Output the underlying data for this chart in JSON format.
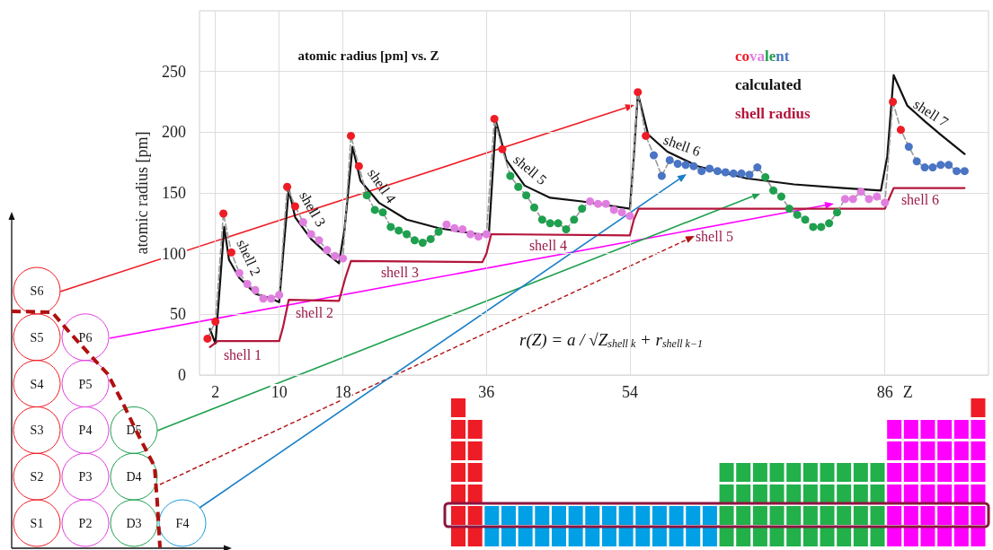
{
  "chart_data": {
    "type": "line",
    "title": "atomic radius [pm] vs. Z",
    "xlabel": "Z",
    "ylabel": "atomic radius [pm]",
    "xlim": [
      0,
      99
    ],
    "xticks": [
      2,
      10,
      18,
      36,
      54,
      86
    ],
    "ylim": [
      0,
      300
    ],
    "yticks": [
      0,
      50,
      100,
      150,
      200,
      250
    ],
    "grid": true,
    "legend": "top right",
    "series": [
      {
        "name": "covalent",
        "type": "line",
        "marker": "circle",
        "line_style": "dashed",
        "color": "#999999",
        "x": [
          1,
          2,
          3,
          4,
          5,
          6,
          7,
          8,
          9,
          10,
          11,
          12,
          13,
          14,
          15,
          16,
          17,
          18,
          19,
          20,
          21,
          22,
          23,
          24,
          25,
          26,
          27,
          28,
          29,
          30,
          31,
          32,
          33,
          34,
          35,
          36,
          37,
          38,
          39,
          40,
          41,
          42,
          43,
          44,
          45,
          46,
          47,
          48,
          49,
          50,
          51,
          52,
          53,
          54,
          55,
          56,
          57,
          58,
          59,
          60,
          61,
          62,
          63,
          64,
          65,
          66,
          67,
          68,
          69,
          70,
          71,
          72,
          73,
          74,
          75,
          76,
          77,
          78,
          79,
          80,
          81,
          82,
          83,
          84,
          85,
          86,
          87,
          88,
          89,
          90,
          91,
          92,
          93,
          94,
          95,
          96
        ],
        "values": [
          30,
          44,
          133,
          101,
          84,
          75,
          70,
          63,
          63,
          66,
          155,
          139,
          126,
          116,
          111,
          103,
          98,
          96,
          197,
          172,
          148,
          136,
          134,
          122,
          119,
          116,
          111,
          109,
          112,
          118,
          124,
          121,
          120,
          116,
          114,
          116,
          211,
          186,
          164,
          155,
          148,
          138,
          128,
          125,
          125,
          120,
          128,
          137,
          143,
          141,
          141,
          136,
          134,
          131,
          233,
          197,
          181,
          164,
          177,
          174,
          173,
          172,
          168,
          170,
          168,
          167,
          166,
          166,
          165,
          171,
          163,
          152,
          147,
          137,
          132,
          128,
          122,
          122,
          125,
          134,
          145,
          145,
          151,
          145,
          147,
          142,
          225,
          202,
          188,
          176,
          171,
          171,
          173,
          173,
          168,
          168
        ],
        "colors": [
          "#ee1c25",
          "#ee1c25",
          "#ee1c25",
          "#ee1c25",
          "#e07ee0",
          "#e07ee0",
          "#e07ee0",
          "#e07ee0",
          "#e07ee0",
          "#e07ee0",
          "#ee1c25",
          "#ee1c25",
          "#e07ee0",
          "#e07ee0",
          "#e07ee0",
          "#e07ee0",
          "#e07ee0",
          "#e07ee0",
          "#ee1c25",
          "#ee1c25",
          "#1ea04e",
          "#1ea04e",
          "#1ea04e",
          "#1ea04e",
          "#1ea04e",
          "#1ea04e",
          "#1ea04e",
          "#1ea04e",
          "#1ea04e",
          "#1ea04e",
          "#e07ee0",
          "#e07ee0",
          "#e07ee0",
          "#e07ee0",
          "#e07ee0",
          "#e07ee0",
          "#ee1c25",
          "#ee1c25",
          "#1ea04e",
          "#1ea04e",
          "#1ea04e",
          "#1ea04e",
          "#1ea04e",
          "#1ea04e",
          "#1ea04e",
          "#1ea04e",
          "#1ea04e",
          "#1ea04e",
          "#e07ee0",
          "#e07ee0",
          "#e07ee0",
          "#e07ee0",
          "#e07ee0",
          "#e07ee0",
          "#ee1c25",
          "#ee1c25",
          "#4a74c4",
          "#4a74c4",
          "#4a74c4",
          "#4a74c4",
          "#4a74c4",
          "#4a74c4",
          "#4a74c4",
          "#4a74c4",
          "#4a74c4",
          "#4a74c4",
          "#4a74c4",
          "#4a74c4",
          "#4a74c4",
          "#4a74c4",
          "#1ea04e",
          "#1ea04e",
          "#1ea04e",
          "#1ea04e",
          "#1ea04e",
          "#1ea04e",
          "#1ea04e",
          "#1ea04e",
          "#1ea04e",
          "#1ea04e",
          "#e07ee0",
          "#e07ee0",
          "#e07ee0",
          "#e07ee0",
          "#e07ee0",
          "#e07ee0",
          "#ee1c25",
          "#ee1c25",
          "#4a74c4",
          "#4a74c4",
          "#4a74c4",
          "#4a74c4",
          "#4a74c4",
          "#4a74c4",
          "#4a74c4",
          "#4a74c4"
        ]
      },
      {
        "name": "calculated",
        "type": "line",
        "marker": "none",
        "line_style": "solid",
        "color": "#111111",
        "x": [
          1.3,
          2,
          2.4,
          3.1,
          3.7,
          5,
          7,
          9,
          10,
          10.5,
          11.2,
          12,
          14,
          16,
          17.5,
          18.2,
          19.2,
          20.2,
          22.5,
          26,
          30,
          35,
          36.3,
          37.2,
          38.5,
          40.8,
          44,
          48,
          54,
          54.5,
          55,
          56.3,
          58.7,
          62.5,
          68.6,
          74.6,
          80.8,
          85.5,
          86.3,
          87.1,
          88.8,
          91,
          93,
          96
        ],
        "values": [
          38,
          26,
          60,
          122,
          95,
          80,
          67,
          63,
          60,
          100,
          153,
          130,
          112,
          100,
          92,
          120,
          188,
          160,
          142,
          128,
          121,
          116,
          115,
          209,
          177,
          156,
          146,
          143,
          137,
          180,
          232,
          198,
          184,
          172,
          162,
          157,
          154,
          152,
          180,
          247,
          222,
          209,
          198,
          182
        ]
      },
      {
        "name": "shell radius",
        "type": "line",
        "marker": "none",
        "line_style": "solid",
        "color": "#b3163c",
        "x": [
          1.3,
          2.3,
          10,
          10.5,
          11.2,
          17.5,
          18.3,
          19,
          35.5,
          36,
          36.6,
          54,
          54.5,
          55.1,
          86,
          86.5,
          87.1,
          96
        ],
        "values": [
          23,
          28,
          28,
          40,
          62,
          61,
          80,
          94,
          93,
          100,
          116,
          115,
          128,
          137,
          137,
          145,
          154,
          154
        ]
      }
    ],
    "annotations": [
      "shell 1",
      "shell 2",
      "shell 3",
      "shell 4",
      "shell 5",
      "shell 6",
      "shell 2",
      "shell 3",
      "shell 4",
      "shell 5",
      "shell 6",
      "shell 7",
      "r(Z) = a / √Z$_{shell k}$ + r$_{shell k−1}$",
      "S1",
      "S2",
      "S3",
      "S4",
      "S5",
      "S6",
      "P2",
      "P3",
      "P4",
      "P5",
      "P6",
      "D3",
      "D4",
      "D5",
      "F4"
    ]
  }
}
